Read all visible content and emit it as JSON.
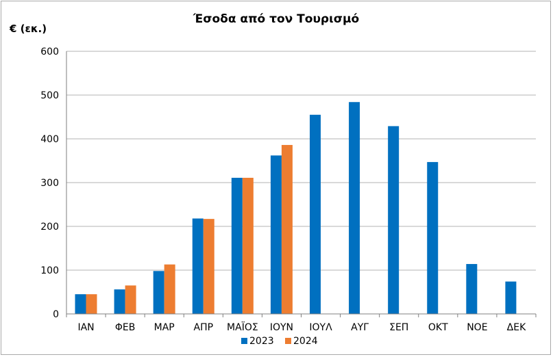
{
  "chart_data": {
    "type": "bar",
    "title": "Έσοδα από τον Τουρισμό",
    "ylabel": "€ (εκ.)",
    "xlabel": "",
    "ylim": [
      0,
      600
    ],
    "yticks": [
      0,
      100,
      200,
      300,
      400,
      500,
      600
    ],
    "grid": true,
    "legend_position": "bottom",
    "categories": [
      "ΙΑΝ",
      "ΦΕΒ",
      "ΜΑΡ",
      "ΑΠΡ",
      "ΜΑΪΟΣ",
      "ΙΟΥΝ",
      "ΙΟΥΛ",
      "ΑΥΓ",
      "ΣΕΠ",
      "ΟΚΤ",
      "ΝΟΕ",
      "ΔΕΚ"
    ],
    "series": [
      {
        "name": "2023",
        "color": "#0070c0",
        "values": [
          45,
          56,
          98,
          218,
          311,
          362,
          455,
          484,
          429,
          347,
          114,
          74
        ]
      },
      {
        "name": "2024",
        "color": "#ed7d31",
        "values": [
          45,
          65,
          113,
          217,
          311,
          386,
          null,
          null,
          null,
          null,
          null,
          null
        ]
      }
    ]
  }
}
